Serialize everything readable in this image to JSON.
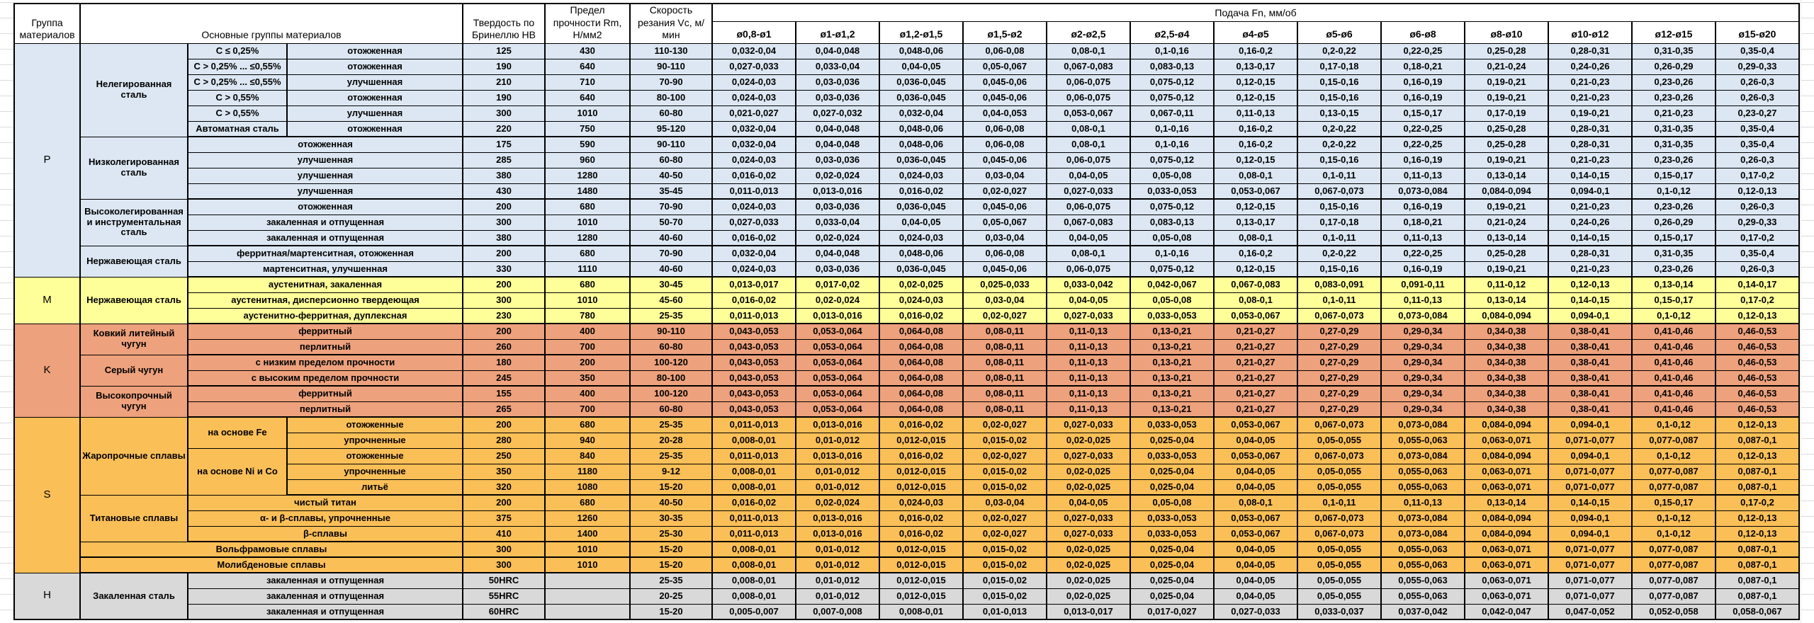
{
  "header": {
    "group": "Группа материалов",
    "main_groups": "Основные группы материалов",
    "hardness": "Твердость по Бринеллю HB",
    "strength": "Предел прочности Rm, Н/мм2",
    "speed": "Скорость резания Vc, м/мин",
    "feed": "Подача Fn, мм/об",
    "diameters": [
      "ø0,8-ø1",
      "ø1-ø1,2",
      "ø1,2-ø1,5",
      "ø1,5-ø2",
      "ø2-ø2,5",
      "ø2,5-ø4",
      "ø4-ø5",
      "ø5-ø6",
      "ø6-ø8",
      "ø8-ø10",
      "ø10-ø12",
      "ø12-ø15",
      "ø15-ø20"
    ]
  },
  "colors": {
    "P": "#dce7f3",
    "M": "#ffff99",
    "K": "#eda17c",
    "S": "#fbbf57",
    "H": "#d9d9d9"
  },
  "feed_patterns": {
    "A": [
      "0,032-0,04",
      "0,04-0,048",
      "0,048-0,06",
      "0,06-0,08",
      "0,08-0,1",
      "0,1-0,16",
      "0,16-0,2",
      "0,2-0,22",
      "0,22-0,25",
      "0,25-0,28",
      "0,28-0,31",
      "0,31-0,35",
      "0,35-0,4"
    ],
    "B": [
      "0,027-0,033",
      "0,033-0,04",
      "0,04-0,05",
      "0,05-0,067",
      "0,067-0,083",
      "0,083-0,13",
      "0,13-0,17",
      "0,17-0,18",
      "0,18-0,21",
      "0,21-0,24",
      "0,24-0,26",
      "0,26-0,29",
      "0,29-0,33"
    ],
    "C": [
      "0,024-0,03",
      "0,03-0,036",
      "0,036-0,045",
      "0,045-0,06",
      "0,06-0,075",
      "0,075-0,12",
      "0,12-0,15",
      "0,15-0,16",
      "0,16-0,19",
      "0,19-0,21",
      "0,21-0,23",
      "0,23-0,26",
      "0,26-0,3"
    ],
    "D": [
      "0,021-0,027",
      "0,027-0,032",
      "0,032-0,04",
      "0,04-0,053",
      "0,053-0,067",
      "0,067-0,11",
      "0,11-0,13",
      "0,13-0,15",
      "0,15-0,17",
      "0,17-0,19",
      "0,19-0,21",
      "0,21-0,23",
      "0,23-0,27"
    ],
    "E": [
      "0,016-0,02",
      "0,02-0,024",
      "0,024-0,03",
      "0,03-0,04",
      "0,04-0,05",
      "0,05-0,08",
      "0,08-0,1",
      "0,1-0,11",
      "0,11-0,13",
      "0,13-0,14",
      "0,14-0,15",
      "0,15-0,17",
      "0,17-0,2"
    ],
    "F": [
      "0,011-0,013",
      "0,013-0,016",
      "0,016-0,02",
      "0,02-0,027",
      "0,027-0,033",
      "0,033-0,053",
      "0,053-0,067",
      "0,067-0,073",
      "0,073-0,084",
      "0,084-0,094",
      "0,094-0,1",
      "0,1-0,12",
      "0,12-0,13"
    ],
    "G": [
      "0,013-0,017",
      "0,017-0,02",
      "0,02-0,025",
      "0,025-0,033",
      "0,033-0,042",
      "0,042-0,067",
      "0,067-0,083",
      "0,083-0,091",
      "0,091-0,11",
      "0,11-0,12",
      "0,12-0,13",
      "0,13-0,14",
      "0,14-0,17"
    ],
    "H": [
      "0,043-0,053",
      "0,053-0,064",
      "0,064-0,08",
      "0,08-0,11",
      "0,11-0,13",
      "0,13-0,21",
      "0,21-0,27",
      "0,27-0,29",
      "0,29-0,34",
      "0,34-0,38",
      "0,38-0,41",
      "0,41-0,46",
      "0,46-0,53"
    ],
    "I": [
      "0,008-0,01",
      "0,01-0,012",
      "0,012-0,015",
      "0,015-0,02",
      "0,02-0,025",
      "0,025-0,04",
      "0,04-0,05",
      "0,05-0,055",
      "0,055-0,063",
      "0,063-0,071",
      "0,071-0,077",
      "0,077-0,087",
      "0,087-0,1"
    ],
    "J": [
      "0,005-0,007",
      "0,007-0,008",
      "0,008-0,01",
      "0,01-0,013",
      "0,013-0,017",
      "0,017-0,027",
      "0,027-0,033",
      "0,033-0,037",
      "0,037-0,042",
      "0,042-0,047",
      "0,047-0,052",
      "0,052-0,058",
      "0,058-0,067"
    ]
  },
  "rows": [
    {
      "g": "P",
      "group": {
        "label": "P",
        "span": 15
      },
      "family": {
        "label": "Нелегированная сталь",
        "span": 6
      },
      "sub": {
        "label": "С ≤ 0,25%"
      },
      "state": "отожженная",
      "hb": "125",
      "rm": "430",
      "vc": "110-130",
      "fp": "A",
      "thick": false
    },
    {
      "g": "P",
      "sub": {
        "label": "С > 0,25% ... ≤0,55%"
      },
      "state": "отожженная",
      "hb": "190",
      "rm": "640",
      "vc": "90-110",
      "fp": "B",
      "thick": false
    },
    {
      "g": "P",
      "sub": {
        "label": "С > 0,25% ... ≤0,55%"
      },
      "state": "улучшенная",
      "hb": "210",
      "rm": "710",
      "vc": "70-90",
      "fp": "C",
      "thick": false
    },
    {
      "g": "P",
      "sub": {
        "label": "С > 0,55%"
      },
      "state": "отожженная",
      "hb": "190",
      "rm": "640",
      "vc": "80-100",
      "fp": "C",
      "thick": false
    },
    {
      "g": "P",
      "sub": {
        "label": "С > 0,55%"
      },
      "state": "улучшенная",
      "hb": "300",
      "rm": "1010",
      "vc": "60-80",
      "fp": "D",
      "thick": false
    },
    {
      "g": "P",
      "sub": {
        "label": "Автоматная сталь"
      },
      "state": "отожженная",
      "hb": "220",
      "rm": "750",
      "vc": "95-120",
      "fp": "A",
      "thick": true
    },
    {
      "g": "P",
      "family": {
        "label": "Низколегированная сталь",
        "span": 4
      },
      "sub": {
        "label": "отожженная",
        "colspan": 2
      },
      "hb": "175",
      "rm": "590",
      "vc": "90-110",
      "fp": "A",
      "thick": false
    },
    {
      "g": "P",
      "sub": {
        "label": "улучшенная",
        "colspan": 2
      },
      "hb": "285",
      "rm": "960",
      "vc": "60-80",
      "fp": "C",
      "thick": false
    },
    {
      "g": "P",
      "sub": {
        "label": "улучшенная",
        "colspan": 2
      },
      "hb": "380",
      "rm": "1280",
      "vc": "40-50",
      "fp": "E",
      "thick": false
    },
    {
      "g": "P",
      "sub": {
        "label": "улучшенная",
        "colspan": 2
      },
      "hb": "430",
      "rm": "1480",
      "vc": "35-45",
      "fp": "F",
      "thick": true
    },
    {
      "g": "P",
      "family": {
        "label": "Высоколегированная и инструментальная сталь",
        "span": 3
      },
      "sub": {
        "label": "отожженная",
        "colspan": 2
      },
      "hb": "200",
      "rm": "680",
      "vc": "70-90",
      "fp": "C",
      "thick": false
    },
    {
      "g": "P",
      "sub": {
        "label": "закаленная и отпущенная",
        "colspan": 2
      },
      "hb": "300",
      "rm": "1010",
      "vc": "50-70",
      "fp": "B",
      "thick": false
    },
    {
      "g": "P",
      "sub": {
        "label": "закаленная и отпущенная",
        "colspan": 2
      },
      "hb": "380",
      "rm": "1280",
      "vc": "40-60",
      "fp": "E",
      "thick": true
    },
    {
      "g": "P",
      "family": {
        "label": "Нержавеющая сталь",
        "span": 2
      },
      "sub": {
        "label": "ферритная/мартенситная, отожженная",
        "colspan": 2
      },
      "hb": "200",
      "rm": "680",
      "vc": "70-90",
      "fp": "A",
      "thick": false
    },
    {
      "g": "P",
      "sub": {
        "label": "мартенситная, улучшенная",
        "colspan": 2
      },
      "hb": "330",
      "rm": "1110",
      "vc": "40-60",
      "fp": "C",
      "thick": true
    },
    {
      "g": "M",
      "group": {
        "label": "M",
        "span": 3
      },
      "family": {
        "label": "Нержавеющая сталь",
        "span": 3
      },
      "sub": {
        "label": "аустенитная, закаленная",
        "colspan": 2
      },
      "hb": "200",
      "rm": "680",
      "vc": "30-45",
      "fp": "G",
      "thick": false
    },
    {
      "g": "M",
      "sub": {
        "label": "аустенитная, дисперсионно твердеющая",
        "colspan": 2
      },
      "hb": "300",
      "rm": "1010",
      "vc": "45-60",
      "fp": "E",
      "thick": false
    },
    {
      "g": "M",
      "sub": {
        "label": "аустенитно-ферритная, дуплексная",
        "colspan": 2
      },
      "hb": "230",
      "rm": "780",
      "vc": "25-35",
      "fp": "F",
      "thick": true
    },
    {
      "g": "K",
      "group": {
        "label": "K",
        "span": 6
      },
      "family": {
        "label": "Ковкий литейный чугун",
        "span": 2
      },
      "sub": {
        "label": "ферритный",
        "colspan": 2
      },
      "hb": "200",
      "rm": "400",
      "vc": "90-110",
      "fp": "H",
      "thick": false
    },
    {
      "g": "K",
      "sub": {
        "label": "перлитный",
        "colspan": 2
      },
      "hb": "260",
      "rm": "700",
      "vc": "60-80",
      "fp": "H",
      "thick": true
    },
    {
      "g": "K",
      "family": {
        "label": "Серый чугун",
        "span": 2
      },
      "sub": {
        "label": "с низким пределом прочности",
        "colspan": 2
      },
      "hb": "180",
      "rm": "200",
      "vc": "100-120",
      "fp": "H",
      "thick": false
    },
    {
      "g": "K",
      "sub": {
        "label": "с высоким пределом прочности",
        "colspan": 2
      },
      "hb": "245",
      "rm": "350",
      "vc": "80-100",
      "fp": "H",
      "thick": true
    },
    {
      "g": "K",
      "family": {
        "label": "Высокопрочный чугун",
        "span": 2
      },
      "sub": {
        "label": "ферритный",
        "colspan": 2
      },
      "hb": "155",
      "rm": "400",
      "vc": "100-120",
      "fp": "H",
      "thick": false
    },
    {
      "g": "K",
      "sub": {
        "label": "перлитный",
        "colspan": 2
      },
      "hb": "265",
      "rm": "700",
      "vc": "60-80",
      "fp": "H",
      "thick": true
    },
    {
      "g": "S",
      "group": {
        "label": "S",
        "span": 10
      },
      "family": {
        "label": "Жаропрочные сплавы",
        "span": 5
      },
      "sub": {
        "label": "на основе Fe",
        "span": 2
      },
      "state": "отожженные",
      "hb": "200",
      "rm": "680",
      "vc": "25-35",
      "fp": "F",
      "thick": false
    },
    {
      "g": "S",
      "state": "упрочненные",
      "hb": "280",
      "rm": "940",
      "vc": "20-28",
      "fp": "I",
      "thick": false
    },
    {
      "g": "S",
      "sub": {
        "label": "на основе Ni и Co",
        "span": 3
      },
      "state": "отожженные",
      "hb": "250",
      "rm": "840",
      "vc": "25-35",
      "fp": "F",
      "thick": false
    },
    {
      "g": "S",
      "state": "упрочненные",
      "hb": "350",
      "rm": "1180",
      "vc": "9-12",
      "fp": "I",
      "thick": false
    },
    {
      "g": "S",
      "state": "литьё",
      "hb": "320",
      "rm": "1080",
      "vc": "15-20",
      "fp": "I",
      "thick": true
    },
    {
      "g": "S",
      "family": {
        "label": "Титановые сплавы",
        "span": 3
      },
      "sub": {
        "label": "чистый титан",
        "colspan": 2
      },
      "hb": "200",
      "rm": "680",
      "vc": "40-50",
      "fp": "E",
      "thick": false
    },
    {
      "g": "S",
      "sub": {
        "label": "α- и β-сплавы, упрочненные",
        "colspan": 2
      },
      "hb": "375",
      "rm": "1260",
      "vc": "30-35",
      "fp": "F",
      "thick": false
    },
    {
      "g": "S",
      "sub": {
        "label": "β-сплавы",
        "colspan": 2
      },
      "hb": "410",
      "rm": "1400",
      "vc": "25-30",
      "fp": "F",
      "thick": true
    },
    {
      "g": "S",
      "family": {
        "label": "Вольфрамовые сплавы",
        "colspan": 3
      },
      "hb": "300",
      "rm": "1010",
      "vc": "15-20",
      "fp": "I",
      "thick": true
    },
    {
      "g": "S",
      "family": {
        "label": "Молибденовые сплавы",
        "colspan": 3
      },
      "hb": "300",
      "rm": "1010",
      "vc": "15-20",
      "fp": "I",
      "thick": true
    },
    {
      "g": "H",
      "group": {
        "label": "H",
        "span": 3
      },
      "family": {
        "label": "Закаленная сталь",
        "span": 3
      },
      "sub": {
        "label": "закаленная и отпущенная",
        "colspan": 2
      },
      "hb": "50HRC",
      "rm": "",
      "vc": "25-35",
      "fp": "I",
      "thick": false
    },
    {
      "g": "H",
      "sub": {
        "label": "закаленная и отпущенная",
        "colspan": 2
      },
      "hb": "55HRC",
      "rm": "",
      "vc": "20-25",
      "fp": "I",
      "thick": false
    },
    {
      "g": "H",
      "sub": {
        "label": "закаленная и отпущенная",
        "colspan": 2
      },
      "hb": "60HRC",
      "rm": "",
      "vc": "15-20",
      "fp": "J",
      "thick": false
    }
  ]
}
